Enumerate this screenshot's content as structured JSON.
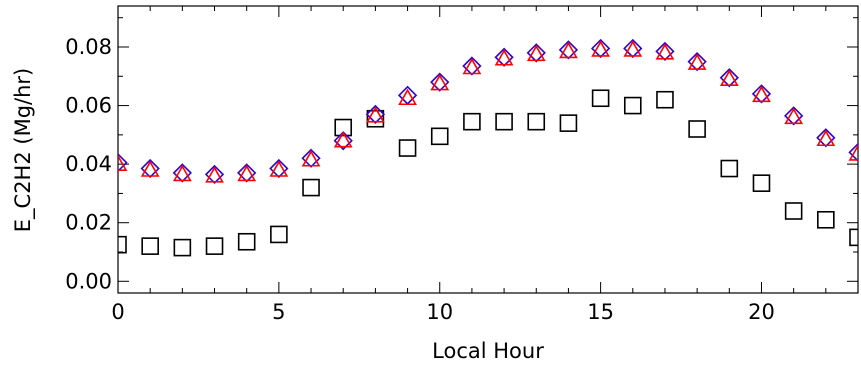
{
  "chart_data": {
    "type": "scatter",
    "xlabel": "Local Hour",
    "ylabel": "E_C2H2 (Mg/hr)",
    "xlim": [
      0,
      23
    ],
    "ylim": [
      -0.004,
      0.094
    ],
    "xticks": [
      0,
      5,
      10,
      15,
      20
    ],
    "xtick_labels": [
      "0",
      "5",
      "10",
      "15",
      "20"
    ],
    "yticks": [
      0.0,
      0.02,
      0.04,
      0.06,
      0.08
    ],
    "ytick_labels": [
      "0.00",
      "0.02",
      "0.04",
      "0.06",
      "0.08"
    ],
    "grid": false,
    "series": [
      {
        "marker": "square",
        "color": "#000000",
        "x": [
          0,
          1,
          2,
          3,
          4,
          5,
          6,
          7,
          8,
          9,
          10,
          11,
          12,
          13,
          14,
          15,
          16,
          17,
          18,
          19,
          20,
          21,
          22,
          23
        ],
        "values": [
          0.0125,
          0.012,
          0.0115,
          0.012,
          0.0135,
          0.016,
          0.032,
          0.0525,
          0.0555,
          0.0455,
          0.0495,
          0.0545,
          0.0545,
          0.0545,
          0.054,
          0.0625,
          0.06,
          0.062,
          0.052,
          0.0385,
          0.0335,
          0.024,
          0.021,
          0.015
        ]
      },
      {
        "marker": "diamond",
        "color": "#3300cc",
        "x": [
          0,
          1,
          2,
          3,
          4,
          5,
          6,
          7,
          8,
          9,
          10,
          11,
          12,
          13,
          14,
          15,
          16,
          17,
          18,
          19,
          20,
          21,
          22,
          23
        ],
        "values": [
          0.0405,
          0.0385,
          0.037,
          0.0365,
          0.037,
          0.0385,
          0.042,
          0.048,
          0.057,
          0.0635,
          0.068,
          0.0735,
          0.0765,
          0.078,
          0.079,
          0.0795,
          0.0795,
          0.0785,
          0.075,
          0.0695,
          0.064,
          0.0565,
          0.049,
          0.044
        ]
      },
      {
        "marker": "triangle",
        "color": "#ff0000",
        "x": [
          0,
          1,
          2,
          3,
          4,
          5,
          6,
          7,
          8,
          9,
          10,
          11,
          12,
          13,
          14,
          15,
          16,
          17,
          18,
          19,
          20,
          21,
          22,
          23
        ],
        "values": [
          0.04,
          0.038,
          0.0365,
          0.036,
          0.0365,
          0.038,
          0.0415,
          0.048,
          0.0565,
          0.0625,
          0.0675,
          0.073,
          0.076,
          0.0775,
          0.0785,
          0.079,
          0.079,
          0.078,
          0.0745,
          0.069,
          0.0635,
          0.056,
          0.0485,
          0.0435
        ]
      }
    ]
  }
}
